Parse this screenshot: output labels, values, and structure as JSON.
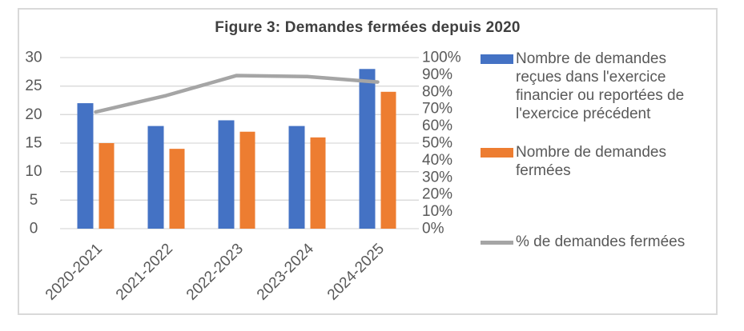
{
  "chart_data": {
    "type": "bar",
    "subtype": "grouped bars with overlaid percentage line (combo chart)",
    "title": "Figure 3: Demandes fermées depuis 2020",
    "categories": [
      "2020-2021",
      "2021-2022",
      "2022-2023",
      "2023-2024",
      "2024-2025"
    ],
    "series": [
      {
        "name": "Nombre de demandes reçues dans l'exercice financier ou reportées de l'exercice précédent",
        "type": "bar",
        "axis": "left",
        "color": "#4472C4",
        "values": [
          22,
          18,
          19,
          18,
          28
        ]
      },
      {
        "name": "Nombre de demandes fermées",
        "type": "bar",
        "axis": "left",
        "color": "#ED7D31",
        "values": [
          15,
          14,
          17,
          16,
          24
        ]
      },
      {
        "name": "% de demandes fermées",
        "type": "line",
        "axis": "right",
        "color": "#A5A5A5",
        "values_pct": [
          68.2,
          77.8,
          89.5,
          88.9,
          85.7
        ]
      }
    ],
    "left_axis": {
      "min": 0,
      "max": 30,
      "ticks": [
        0,
        5,
        10,
        15,
        20,
        25,
        30
      ]
    },
    "right_axis": {
      "min": 0,
      "max": 100,
      "ticks": [
        "0%",
        "10%",
        "20%",
        "30%",
        "40%",
        "50%",
        "60%",
        "70%",
        "80%",
        "90%",
        "100%"
      ]
    },
    "grid": true,
    "legend_position": "right",
    "gridline_color": "#D9D9D9",
    "axis_text_color": "#595959"
  },
  "legend": {
    "items": [
      {
        "label": "Nombre de demandes\nreçues dans l'exercice\nfinancier ou reportées de\nl'exercice précédent",
        "swatch": "bar",
        "color": "#4472C4"
      },
      {
        "label": "Nombre de demandes\nfermées",
        "swatch": "bar",
        "color": "#ED7D31"
      },
      {
        "label": "% de demandes fermées",
        "swatch": "line",
        "color": "#A5A5A5"
      }
    ]
  }
}
